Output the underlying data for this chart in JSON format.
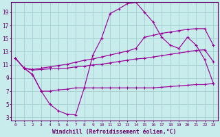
{
  "xlabel": "Windchill (Refroidissement éolien,°C)",
  "bg_color": "#c8ecec",
  "grid_color": "#aad4d4",
  "line_color": "#990099",
  "xlim": [
    -0.5,
    23.5
  ],
  "ylim": [
    2.5,
    20.5
  ],
  "yticks": [
    3,
    5,
    7,
    9,
    11,
    13,
    15,
    17,
    19
  ],
  "xticks": [
    0,
    1,
    2,
    3,
    4,
    5,
    6,
    7,
    8,
    9,
    10,
    11,
    12,
    13,
    14,
    15,
    16,
    17,
    18,
    19,
    20,
    21,
    22,
    23
  ],
  "curve1_x": [
    0,
    1,
    2,
    3,
    4,
    5,
    6,
    7,
    8,
    9,
    10,
    11,
    12,
    13,
    14,
    15,
    16,
    17,
    18,
    19,
    20,
    21,
    22,
    23
  ],
  "curve1_y": [
    12.0,
    10.5,
    9.5,
    7.0,
    5.0,
    4.0,
    3.5,
    3.4,
    7.5,
    12.5,
    15.0,
    18.8,
    19.5,
    20.3,
    20.5,
    19.0,
    17.5,
    15.2,
    14.0,
    13.5,
    15.2,
    14.0,
    11.8,
    8.2
  ],
  "curve2_x": [
    0,
    1,
    2,
    3,
    4,
    5,
    6,
    7,
    8,
    9,
    10,
    11,
    12,
    13,
    14,
    15,
    16,
    17,
    18,
    19,
    20,
    21,
    22,
    23
  ],
  "curve2_y": [
    12.0,
    10.5,
    10.3,
    10.5,
    10.7,
    10.9,
    11.1,
    11.4,
    11.7,
    11.9,
    12.2,
    12.5,
    12.8,
    13.1,
    13.5,
    15.2,
    15.5,
    15.8,
    16.0,
    16.2,
    16.4,
    16.5,
    16.5,
    14.0
  ],
  "curve3_x": [
    0,
    1,
    2,
    3,
    4,
    5,
    6,
    7,
    8,
    9,
    10,
    11,
    12,
    13,
    14,
    15,
    16,
    17,
    18,
    19,
    20,
    21,
    22,
    23
  ],
  "curve3_y": [
    12.0,
    10.5,
    10.2,
    10.3,
    10.4,
    10.4,
    10.5,
    10.7,
    10.8,
    11.0,
    11.1,
    11.3,
    11.5,
    11.7,
    11.9,
    12.0,
    12.2,
    12.4,
    12.6,
    12.8,
    13.0,
    13.2,
    13.3,
    11.5
  ],
  "curve4_x": [
    1,
    2,
    3,
    4,
    5,
    6,
    7,
    8,
    9,
    10,
    11,
    12,
    13,
    14,
    15,
    16,
    17,
    18,
    19,
    20,
    21,
    22,
    23
  ],
  "curve4_y": [
    10.5,
    9.5,
    7.0,
    7.0,
    7.2,
    7.3,
    7.5,
    7.5,
    7.5,
    7.5,
    7.5,
    7.5,
    7.5,
    7.5,
    7.5,
    7.5,
    7.6,
    7.7,
    7.8,
    7.9,
    8.0,
    8.0,
    8.2
  ]
}
